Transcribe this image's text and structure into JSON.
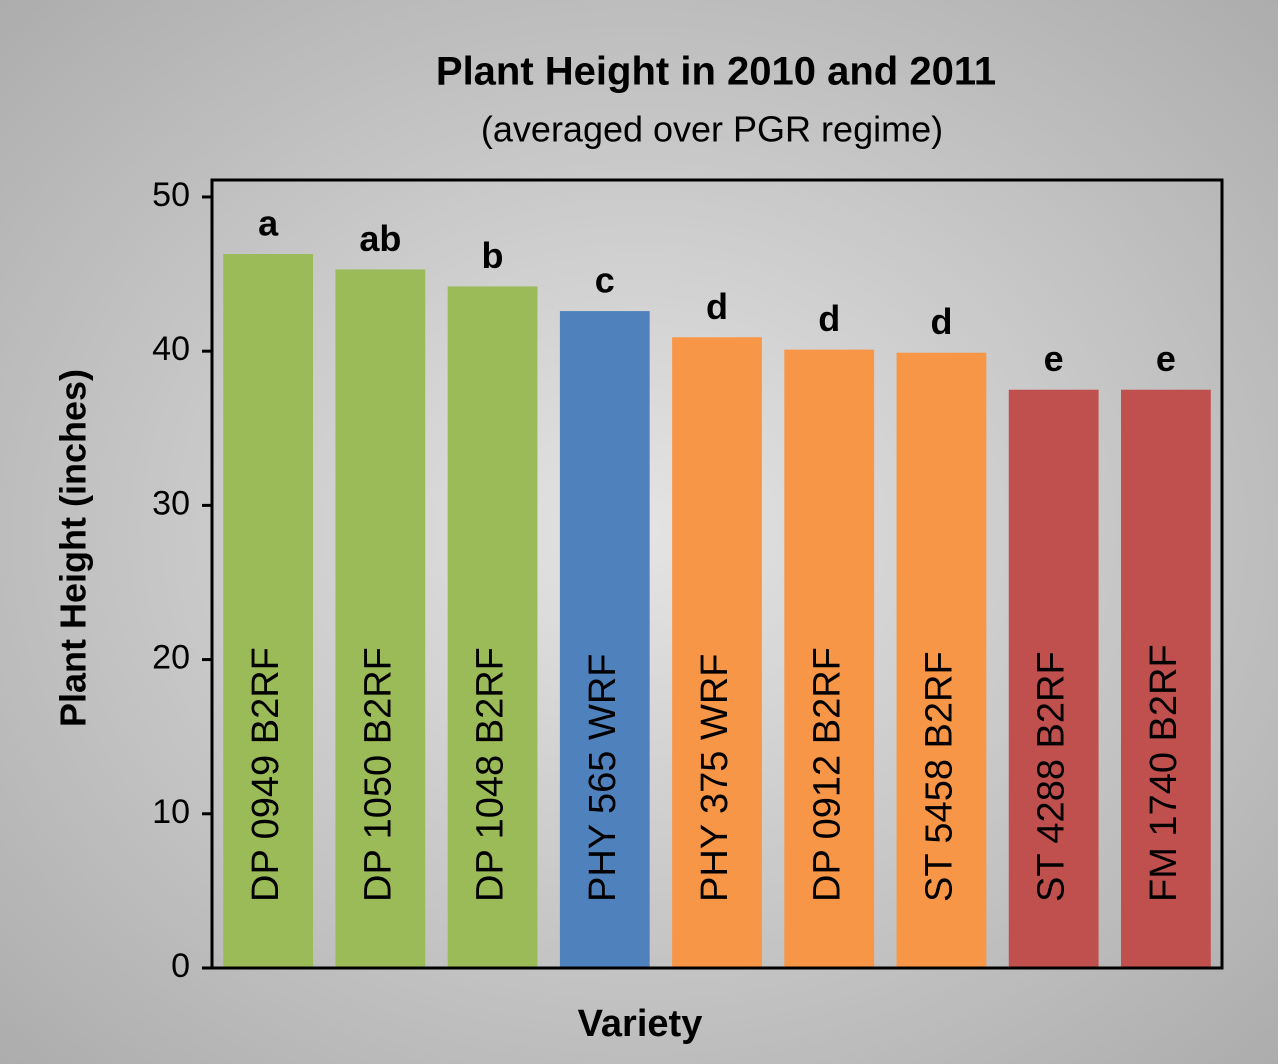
{
  "chart_data": {
    "type": "bar",
    "title": "Plant Height in 2010 and 2011",
    "subtitle": "(averaged  over PGR regime)",
    "x_label": "Variety",
    "y_label": "Plant Height (inches)",
    "categories": [
      "DP 0949 B2RF",
      "DP 1050 B2RF",
      "DP 1048 B2RF",
      "PHY 565 WRF",
      "PHY 375 WRF",
      "DP 0912 B2RF",
      "ST 5458 B2RF",
      "ST 4288 B2RF",
      "FM 1740 B2RF"
    ],
    "values": [
      46.3,
      45.3,
      44.2,
      42.6,
      40.9,
      40.1,
      39.9,
      37.5,
      37.5
    ],
    "annotations": [
      "a",
      "ab",
      "b",
      "c",
      "d",
      "d",
      "d",
      "e",
      "e"
    ],
    "colors": [
      "#9bbb59",
      "#9bbb59",
      "#9bbb59",
      "#4f81bd",
      "#f79646",
      "#f79646",
      "#f79646",
      "#c0504d",
      "#c0504d"
    ],
    "ylim": [
      0,
      51.1
    ],
    "yticks": [
      0,
      10,
      20,
      30,
      40,
      50
    ],
    "grid": false
  }
}
